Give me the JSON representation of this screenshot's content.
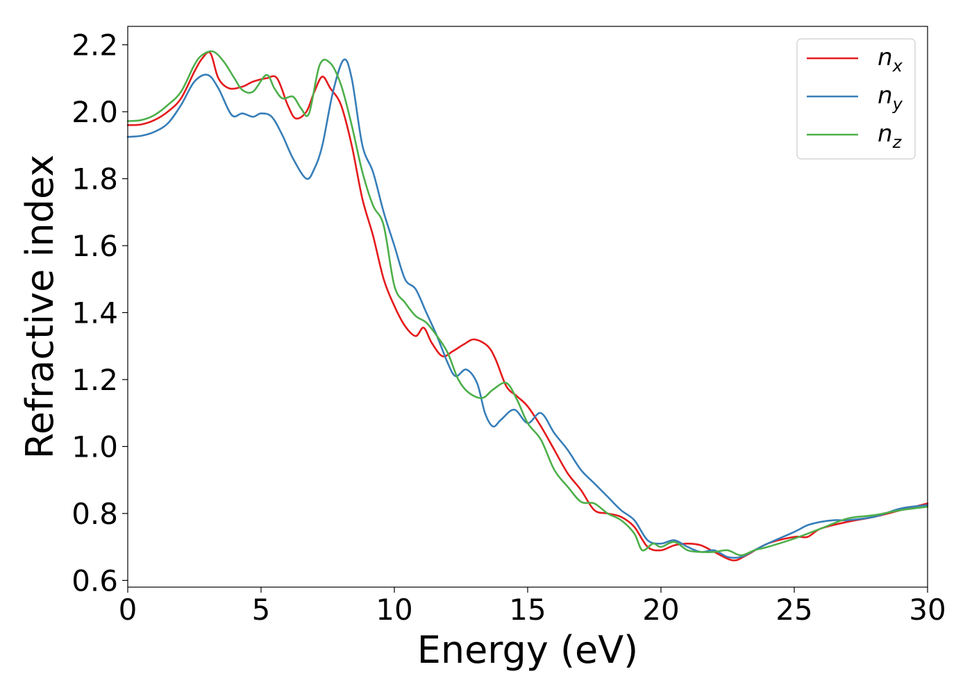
{
  "chart_data": {
    "type": "line",
    "xlabel": "Energy (eV)",
    "ylabel": "Refractive index",
    "xlim": [
      0,
      30
    ],
    "ylim": [
      0.58,
      2.255
    ],
    "xticks": [
      0,
      5,
      10,
      15,
      20,
      25,
      30
    ],
    "xtick_labels": [
      "0",
      "5",
      "10",
      "15",
      "20",
      "25",
      "30"
    ],
    "yticks": [
      0.6,
      0.8,
      1.0,
      1.2,
      1.4,
      1.6,
      1.8,
      2.0,
      2.2
    ],
    "ytick_labels": [
      "0.6",
      "0.8",
      "1.0",
      "1.2",
      "1.4",
      "1.6",
      "1.8",
      "2.0",
      "2.2"
    ],
    "grid": false,
    "legend_position": "top-right",
    "series": [
      {
        "name": "n",
        "subscript": "x",
        "color": "#e41a1c",
        "points": [
          [
            0,
            1.96
          ],
          [
            0.5,
            1.962
          ],
          [
            1,
            1.975
          ],
          [
            1.5,
            2.0
          ],
          [
            2,
            2.04
          ],
          [
            2.5,
            2.12
          ],
          [
            2.8,
            2.16
          ],
          [
            3.1,
            2.175
          ],
          [
            3.4,
            2.1
          ],
          [
            3.8,
            2.07
          ],
          [
            4.3,
            2.075
          ],
          [
            4.7,
            2.09
          ],
          [
            5.2,
            2.1
          ],
          [
            5.6,
            2.1
          ],
          [
            6.0,
            2.02
          ],
          [
            6.3,
            1.98
          ],
          [
            6.7,
            2.0
          ],
          [
            7.0,
            2.06
          ],
          [
            7.3,
            2.105
          ],
          [
            7.6,
            2.07
          ],
          [
            8.0,
            2.02
          ],
          [
            8.4,
            1.9
          ],
          [
            8.8,
            1.74
          ],
          [
            9.2,
            1.63
          ],
          [
            9.6,
            1.5
          ],
          [
            10.0,
            1.42
          ],
          [
            10.4,
            1.36
          ],
          [
            10.8,
            1.33
          ],
          [
            11.1,
            1.355
          ],
          [
            11.4,
            1.31
          ],
          [
            11.8,
            1.27
          ],
          [
            12.2,
            1.285
          ],
          [
            12.6,
            1.305
          ],
          [
            13.0,
            1.32
          ],
          [
            13.5,
            1.3
          ],
          [
            13.8,
            1.26
          ],
          [
            14.2,
            1.18
          ],
          [
            14.6,
            1.15
          ],
          [
            15.0,
            1.12
          ],
          [
            15.5,
            1.06
          ],
          [
            16.0,
            0.99
          ],
          [
            16.5,
            0.92
          ],
          [
            17.0,
            0.87
          ],
          [
            17.5,
            0.81
          ],
          [
            18.0,
            0.8
          ],
          [
            18.5,
            0.79
          ],
          [
            19.0,
            0.76
          ],
          [
            19.5,
            0.7
          ],
          [
            20.0,
            0.69
          ],
          [
            20.5,
            0.705
          ],
          [
            21.0,
            0.71
          ],
          [
            21.5,
            0.705
          ],
          [
            22.0,
            0.685
          ],
          [
            22.7,
            0.66
          ],
          [
            23.2,
            0.675
          ],
          [
            24.0,
            0.71
          ],
          [
            25.0,
            0.73
          ],
          [
            25.5,
            0.73
          ],
          [
            26.0,
            0.755
          ],
          [
            27.0,
            0.775
          ],
          [
            28.0,
            0.79
          ],
          [
            29.0,
            0.81
          ],
          [
            30.0,
            0.83
          ]
        ]
      },
      {
        "name": "n",
        "subscript": "y",
        "color": "#377eb8",
        "points": [
          [
            0,
            1.925
          ],
          [
            0.5,
            1.928
          ],
          [
            1,
            1.94
          ],
          [
            1.5,
            1.965
          ],
          [
            2,
            2.02
          ],
          [
            2.5,
            2.09
          ],
          [
            3.0,
            2.11
          ],
          [
            3.4,
            2.07
          ],
          [
            3.9,
            1.99
          ],
          [
            4.3,
            1.995
          ],
          [
            4.7,
            1.985
          ],
          [
            5.0,
            1.995
          ],
          [
            5.4,
            1.985
          ],
          [
            5.8,
            1.93
          ],
          [
            6.2,
            1.86
          ],
          [
            6.7,
            1.8
          ],
          [
            7.0,
            1.83
          ],
          [
            7.3,
            1.9
          ],
          [
            7.7,
            2.06
          ],
          [
            8.1,
            2.155
          ],
          [
            8.4,
            2.1
          ],
          [
            8.8,
            1.9
          ],
          [
            9.2,
            1.82
          ],
          [
            9.6,
            1.7
          ],
          [
            10.0,
            1.6
          ],
          [
            10.4,
            1.5
          ],
          [
            10.8,
            1.47
          ],
          [
            11.2,
            1.4
          ],
          [
            11.6,
            1.33
          ],
          [
            12.0,
            1.25
          ],
          [
            12.3,
            1.21
          ],
          [
            12.7,
            1.23
          ],
          [
            13.1,
            1.19
          ],
          [
            13.4,
            1.1
          ],
          [
            13.7,
            1.06
          ],
          [
            14.0,
            1.08
          ],
          [
            14.5,
            1.11
          ],
          [
            15.0,
            1.07
          ],
          [
            15.5,
            1.1
          ],
          [
            16.0,
            1.04
          ],
          [
            16.5,
            0.99
          ],
          [
            17.0,
            0.93
          ],
          [
            17.5,
            0.89
          ],
          [
            18.0,
            0.85
          ],
          [
            18.5,
            0.81
          ],
          [
            19.0,
            0.78
          ],
          [
            19.5,
            0.72
          ],
          [
            20.0,
            0.71
          ],
          [
            20.5,
            0.72
          ],
          [
            21.0,
            0.7
          ],
          [
            21.5,
            0.685
          ],
          [
            22.0,
            0.69
          ],
          [
            22.5,
            0.67
          ],
          [
            23.0,
            0.67
          ],
          [
            23.5,
            0.69
          ],
          [
            24.0,
            0.71
          ],
          [
            25.0,
            0.745
          ],
          [
            25.5,
            0.765
          ],
          [
            26.0,
            0.775
          ],
          [
            26.5,
            0.78
          ],
          [
            27.0,
            0.78
          ],
          [
            28.0,
            0.79
          ],
          [
            29.0,
            0.815
          ],
          [
            30.0,
            0.825
          ]
        ]
      },
      {
        "name": "n",
        "subscript": "z",
        "color": "#4daf4a",
        "points": [
          [
            0,
            1.972
          ],
          [
            0.5,
            1.975
          ],
          [
            1,
            1.99
          ],
          [
            1.5,
            2.02
          ],
          [
            2,
            2.06
          ],
          [
            2.5,
            2.14
          ],
          [
            2.8,
            2.17
          ],
          [
            3.2,
            2.18
          ],
          [
            3.6,
            2.15
          ],
          [
            4.0,
            2.1
          ],
          [
            4.3,
            2.065
          ],
          [
            4.7,
            2.06
          ],
          [
            5.2,
            2.11
          ],
          [
            5.5,
            2.07
          ],
          [
            5.8,
            2.04
          ],
          [
            6.2,
            2.045
          ],
          [
            6.5,
            2.01
          ],
          [
            6.8,
            1.995
          ],
          [
            7.2,
            2.14
          ],
          [
            7.6,
            2.145
          ],
          [
            8.0,
            2.08
          ],
          [
            8.4,
            1.96
          ],
          [
            8.8,
            1.82
          ],
          [
            9.2,
            1.72
          ],
          [
            9.6,
            1.66
          ],
          [
            10.0,
            1.48
          ],
          [
            10.4,
            1.43
          ],
          [
            10.8,
            1.39
          ],
          [
            11.2,
            1.37
          ],
          [
            11.6,
            1.33
          ],
          [
            12.0,
            1.28
          ],
          [
            12.4,
            1.2
          ],
          [
            12.8,
            1.16
          ],
          [
            13.3,
            1.145
          ],
          [
            13.7,
            1.17
          ],
          [
            14.2,
            1.19
          ],
          [
            14.6,
            1.14
          ],
          [
            15.0,
            1.07
          ],
          [
            15.5,
            1.02
          ],
          [
            16.0,
            0.93
          ],
          [
            16.5,
            0.88
          ],
          [
            17.0,
            0.835
          ],
          [
            17.5,
            0.83
          ],
          [
            18.0,
            0.8
          ],
          [
            18.5,
            0.78
          ],
          [
            19.0,
            0.74
          ],
          [
            19.3,
            0.69
          ],
          [
            19.7,
            0.71
          ],
          [
            20.0,
            0.7
          ],
          [
            20.5,
            0.715
          ],
          [
            21.0,
            0.69
          ],
          [
            21.5,
            0.685
          ],
          [
            22.0,
            0.685
          ],
          [
            22.5,
            0.69
          ],
          [
            23.0,
            0.675
          ],
          [
            23.5,
            0.69
          ],
          [
            24.0,
            0.7
          ],
          [
            25.0,
            0.725
          ],
          [
            26.0,
            0.755
          ],
          [
            27.0,
            0.785
          ],
          [
            28.0,
            0.795
          ],
          [
            29.0,
            0.81
          ],
          [
            30.0,
            0.82
          ]
        ]
      }
    ]
  }
}
